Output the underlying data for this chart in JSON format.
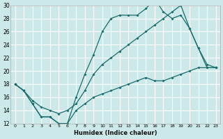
{
  "xlabel": "Humidex (Indice chaleur)",
  "background_color": "#cce8e8",
  "grid_color": "#ffffff",
  "line_color": "#1a6b6b",
  "xlim": [
    -0.5,
    23.5
  ],
  "ylim": [
    12,
    30
  ],
  "xticks": [
    0,
    1,
    2,
    3,
    4,
    5,
    6,
    7,
    8,
    9,
    10,
    11,
    12,
    13,
    14,
    15,
    16,
    17,
    18,
    19,
    20,
    21,
    22,
    23
  ],
  "yticks": [
    12,
    14,
    16,
    18,
    20,
    22,
    24,
    26,
    28,
    30
  ],
  "line1_x": [
    0,
    1,
    2,
    3,
    4,
    5,
    6,
    7,
    8,
    9,
    10,
    11,
    12,
    13,
    14,
    15,
    16,
    17,
    18,
    19,
    20,
    21,
    22,
    23
  ],
  "line1_y": [
    18,
    17,
    15,
    13,
    13,
    12,
    12,
    14,
    15,
    16,
    16.5,
    17,
    17.5,
    18,
    18.5,
    19,
    18.5,
    18.5,
    19,
    19.5,
    20,
    20.5,
    20.5,
    20.5
  ],
  "line2_x": [
    0,
    1,
    2,
    3,
    4,
    5,
    6,
    7,
    8,
    9,
    10,
    11,
    12,
    13,
    14,
    15,
    16,
    17,
    18,
    19,
    20,
    21,
    22,
    23
  ],
  "line2_y": [
    18,
    17,
    15,
    13,
    13,
    12,
    12,
    16,
    19.5,
    22.5,
    26,
    28,
    28.5,
    28.5,
    28.5,
    29.5,
    31,
    29,
    28,
    28.5,
    26.5,
    23.5,
    20.5,
    20.5
  ],
  "line3_x": [
    0,
    1,
    2,
    3,
    4,
    5,
    6,
    7,
    8,
    9,
    10,
    11,
    12,
    13,
    14,
    15,
    16,
    17,
    18,
    19,
    20,
    21,
    22,
    23
  ],
  "line3_y": [
    18,
    17,
    15.5,
    14.5,
    14,
    13.5,
    14,
    15,
    17,
    19.5,
    21,
    22,
    23,
    24,
    25,
    26,
    27,
    28,
    29,
    30,
    26.5,
    23.5,
    21,
    20.5
  ]
}
